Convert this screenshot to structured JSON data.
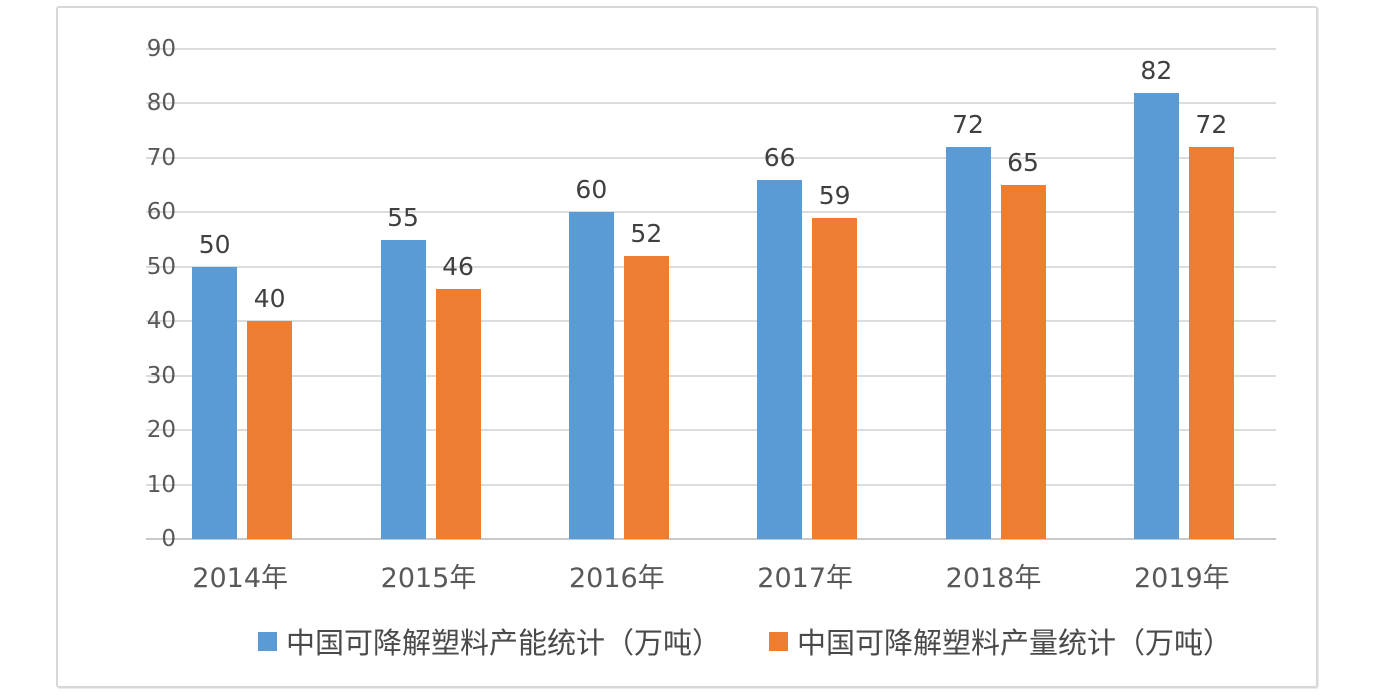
{
  "chart_data": {
    "type": "bar",
    "title": "",
    "xlabel": "",
    "ylabel": "",
    "categories": [
      "2014年",
      "2015年",
      "2016年",
      "2017年",
      "2018年",
      "2019年"
    ],
    "series": [
      {
        "key": "capacity",
        "name": "中国可降解塑料产能统计（万吨）",
        "color": "#5b9bd5",
        "values": [
          50,
          55,
          60,
          66,
          72,
          82
        ]
      },
      {
        "key": "output",
        "name": "中国可降解塑料产量统计（万吨）",
        "color": "#ed7d31",
        "values": [
          40,
          46,
          52,
          59,
          65,
          72
        ]
      }
    ],
    "ylim": [
      0,
      90
    ],
    "ytick_step": 10,
    "yticks": [
      90,
      80,
      70,
      60,
      50,
      40,
      30,
      20,
      10,
      0
    ],
    "grid": true,
    "data_labels": true,
    "legend_position": "bottom",
    "gridline_color": "#dcdcdc",
    "axis_line_color": "#c8c8c8",
    "tick_label_color": "#595959",
    "data_label_color": "#404040"
  }
}
